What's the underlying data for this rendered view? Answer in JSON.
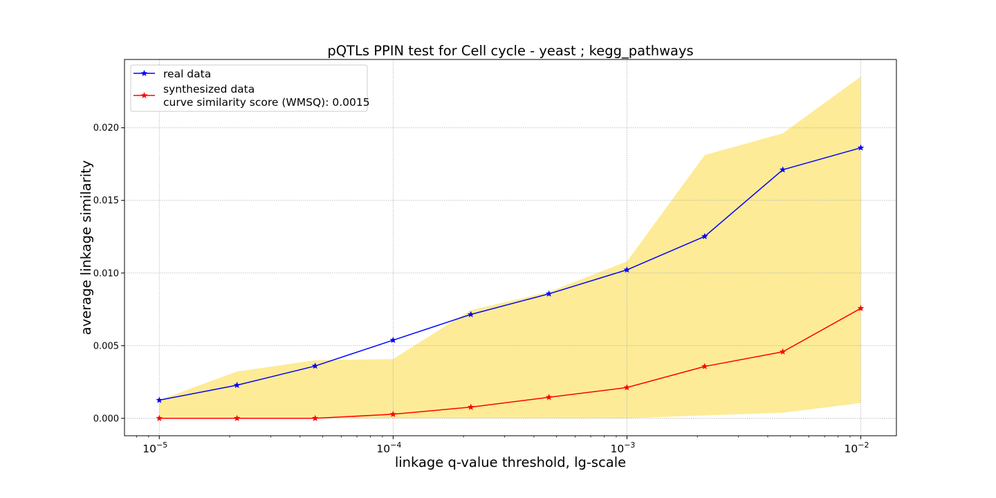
{
  "chart_data": {
    "type": "line",
    "title": "pQTLs PPIN test for Cell cycle - yeast ; kegg_pathways",
    "xlabel": "linkage q-value threshold, lg-scale",
    "ylabel": "average linkage similarity",
    "xscale": "log",
    "xlim": [
      7.1e-06,
      0.0142
    ],
    "ylim": [
      -0.0012,
      0.0247
    ],
    "x": [
      1e-05,
      2.15e-05,
      4.64e-05,
      0.0001,
      0.000215,
      0.000464,
      0.001,
      0.00215,
      0.00464,
      0.01
    ],
    "x_tick_values": [
      1e-05,
      0.0001,
      0.001,
      0.01
    ],
    "x_tick_labels": [
      {
        "base": "10",
        "exp": "−5"
      },
      {
        "base": "10",
        "exp": "−4"
      },
      {
        "base": "10",
        "exp": "−3"
      },
      {
        "base": "10",
        "exp": "−2"
      }
    ],
    "y_ticks": [
      0.0,
      0.005,
      0.01,
      0.015,
      0.02
    ],
    "y_tick_labels": [
      "0.000",
      "0.005",
      "0.010",
      "0.015",
      "0.020"
    ],
    "grid": true,
    "legend_placement": "upper-left",
    "series": [
      {
        "name": "real data",
        "color": "#0000ff",
        "marker": "star",
        "values": [
          0.00125,
          0.00228,
          0.0036,
          0.00538,
          0.00715,
          0.00857,
          0.01022,
          0.01252,
          0.01711,
          0.01862
        ]
      },
      {
        "name": "synthesized data",
        "name_line2": "curve similarity score (WMSQ): 0.0015",
        "color": "#ff0000",
        "marker": "star",
        "values": [
          0.0,
          0.0,
          0.0,
          0.00028,
          0.00077,
          0.00145,
          0.00212,
          0.00357,
          0.00458,
          0.00757
        ]
      }
    ],
    "band": {
      "color": "#fdeb97",
      "lower": [
        0.0,
        0.0,
        0.0,
        0.0,
        0.0,
        0.0,
        0.0,
        0.0002,
        0.00038,
        0.00105
      ],
      "upper": [
        0.00125,
        0.00322,
        0.004,
        0.00408,
        0.00745,
        0.0087,
        0.0108,
        0.01812,
        0.01962,
        0.02352
      ]
    }
  }
}
